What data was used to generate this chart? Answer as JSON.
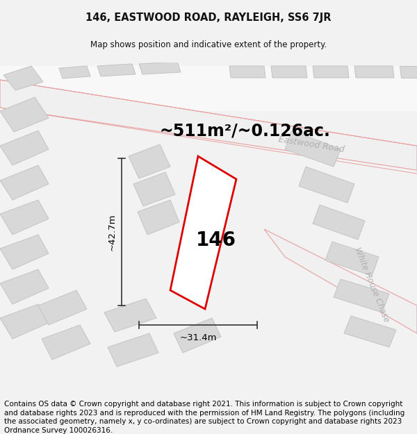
{
  "title_line1": "146, EASTWOOD ROAD, RAYLEIGH, SS6 7JR",
  "title_line2": "Map shows position and indicative extent of the property.",
  "area_text": "~511m²/~0.126ac.",
  "label_number": "146",
  "dim_height": "~42.7m",
  "dim_width": "~31.4m",
  "road_label1": "Eastwood Road",
  "road_label2": "White House Chase",
  "footer_text": "Contains OS data © Crown copyright and database right 2021. This information is subject to Crown copyright and database rights 2023 and is reproduced with the permission of HM Land Registry. The polygons (including the associated geometry, namely x, y co-ordinates) are subject to Crown copyright and database rights 2023 Ordnance Survey 100026316.",
  "bg_color": "#f2f2f2",
  "map_bg": "#ffffff",
  "plot_edge": "#dd0000",
  "building_fill": "#d8d8d8",
  "building_edge": "#c4c4c4",
  "road_edge": "#e8a0a0",
  "road_fill": "#ffffff",
  "dim_color": "#333333",
  "road_text_color": "#b0b0b0",
  "title_color": "#111111",
  "footer_fontsize": 7.5,
  "title1_fontsize": 10.5,
  "title2_fontsize": 8.5,
  "area_fontsize": 17,
  "label_fontsize": 20,
  "dim_fontsize": 9.5
}
